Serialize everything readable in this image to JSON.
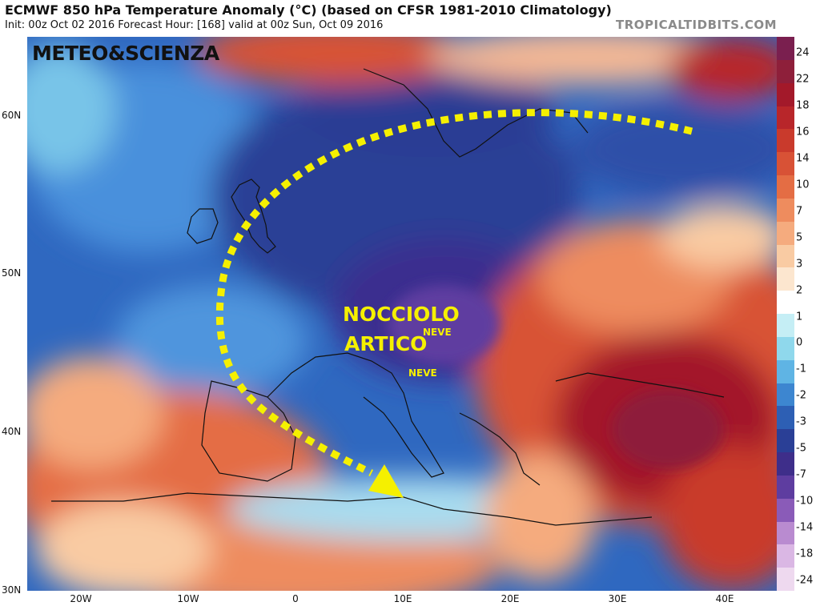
{
  "header": {
    "title": "ECMWF 850 hPa Temperature Anomaly (°C) (based on CFSR 1981-2010 Climatology)",
    "subtitle": "Init: 00z Oct 02 2016   Forecast Hour: [168]   valid at 00z Sun, Oct 09 2016",
    "source": "TROPICALTIDBITS.COM"
  },
  "watermark": "METEO&SCIENZA",
  "annotations": {
    "line1": "NOCCIOLO",
    "line2": "ARTICO",
    "neve_1": "NEVE",
    "neve_2": "NEVE"
  },
  "axes": {
    "lat_labels": [
      "60N",
      "50N",
      "40N",
      "30N"
    ],
    "lon_labels": [
      "20W",
      "10W",
      "0",
      "10E",
      "20E",
      "30E",
      "40E"
    ]
  },
  "colorbar": {
    "labels": [
      "24",
      "22",
      "18",
      "16",
      "14",
      "10",
      "7",
      "5",
      "3",
      "2",
      "1",
      "0",
      "-1",
      "-2",
      "-3",
      "-5",
      "-7",
      "-10",
      "-14",
      "-18",
      "-24"
    ],
    "colors": [
      "#7a1f4f",
      "#8e1f3a",
      "#a3192a",
      "#b8262a",
      "#c93a2c",
      "#d85236",
      "#e46d44",
      "#ee8c5e",
      "#f5ab7e",
      "#f9cba3",
      "#fce6cf",
      "#ffffff",
      "#c5eef5",
      "#8fd8ec",
      "#5fb4e4",
      "#3d86d0",
      "#2d5fb4",
      "#2a3f96",
      "#3e2e8a",
      "#5e3da0",
      "#8a5bb8",
      "#b98bd0",
      "#dab7e4",
      "#eed9ef"
    ]
  },
  "colors": {
    "arrow": "#f5f000",
    "coast": "#111111"
  }
}
